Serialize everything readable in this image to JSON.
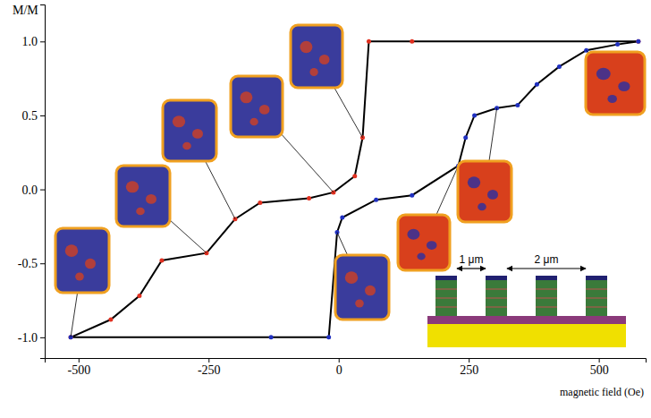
{
  "chart_data": {
    "type": "line",
    "y_label": "M/M",
    "x_label": "magnetic field (Oe)",
    "xlim": [
      -565,
      590
    ],
    "ylim": [
      -1.14,
      1.25
    ],
    "xticks": [
      -500,
      -250,
      0,
      250,
      500
    ],
    "yticks": [
      {
        "value": -1.0,
        "label": "-1.0"
      },
      -0.5,
      {
        "value": 0.0,
        "label": "0.0"
      },
      0.5,
      {
        "value": 1.0,
        "label": "1.0"
      }
    ],
    "grid": false,
    "series": [
      {
        "color": "#000000",
        "marker": "circle",
        "x": [
          -515,
          -438,
          -383,
          -340,
          -254,
          -199,
          -151,
          -57,
          -10,
          31,
          46,
          58,
          141,
          576
        ],
        "values": [
          -1.0,
          -0.88,
          -0.72,
          -0.48,
          -0.43,
          -0.2,
          -0.09,
          -0.06,
          -0.02,
          0.09,
          0.35,
          1.0,
          1.0,
          1.0
        ]
      },
      {
        "color": "#000000",
        "marker": "circle",
        "x": [
          -515,
          -130,
          -19,
          -3,
          7,
          72,
          141,
          230,
          244,
          261,
          304,
          344,
          381,
          424,
          476,
          536,
          576
        ],
        "values": [
          -1.0,
          -1.0,
          -1.0,
          -0.29,
          -0.19,
          -0.07,
          -0.04,
          0.16,
          0.35,
          0.5,
          0.55,
          0.57,
          0.71,
          0.83,
          0.94,
          0.98,
          1.0
        ]
      }
    ],
    "annotations": [
      "1 μm",
      "2 μm"
    ]
  }
}
